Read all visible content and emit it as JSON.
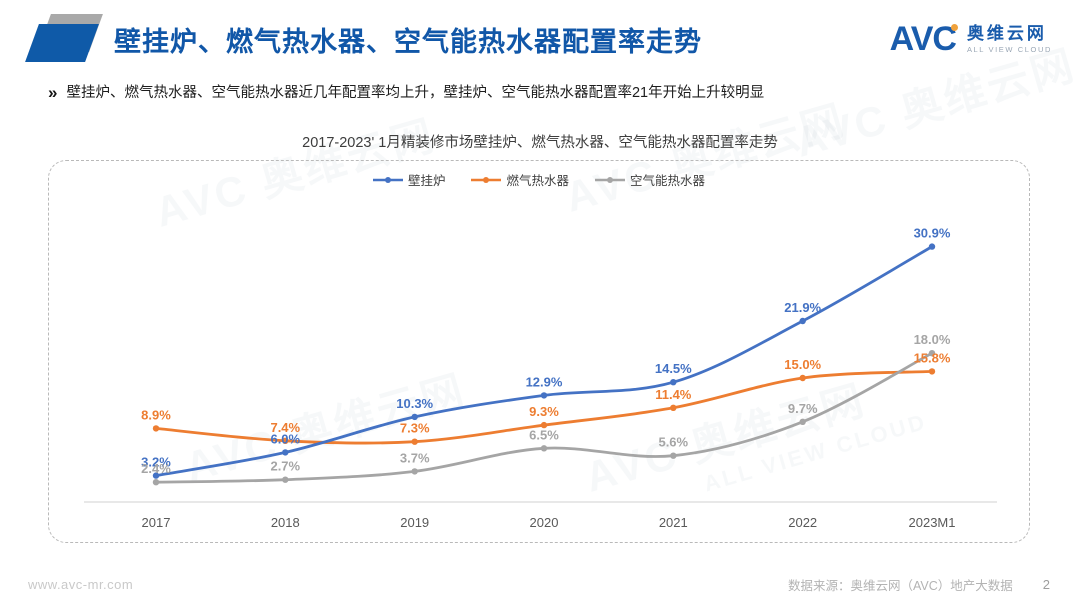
{
  "header": {
    "title": "壁挂炉、燃气热水器、空气能热水器配置率走势",
    "logo": {
      "avc": "AVC",
      "name": "奥维云网",
      "tagline": "ALL VIEW CLOUD"
    }
  },
  "summary": {
    "bullet_icon": "»",
    "text": "壁挂炉、燃气热水器、空气能热水器近几年配置率均上升，壁挂炉、空气能热水器配置率21年开始上升较明显"
  },
  "chart_data": {
    "type": "line",
    "title": "2017-2023' 1月精装修市场壁挂炉、燃气热水器、空气能热水器配置率走势",
    "categories": [
      "2017",
      "2018",
      "2019",
      "2020",
      "2021",
      "2022",
      "2023M1"
    ],
    "series": [
      {
        "name": "壁挂炉",
        "color": "#4472C4",
        "values": [
          3.2,
          6.0,
          10.3,
          12.9,
          14.5,
          21.9,
          30.9
        ]
      },
      {
        "name": "燃气热水器",
        "color": "#ED7D31",
        "values": [
          8.9,
          7.4,
          7.3,
          9.3,
          11.4,
          15.0,
          15.8
        ]
      },
      {
        "name": "空气能热水器",
        "color": "#A5A5A5",
        "values": [
          2.4,
          2.7,
          3.7,
          6.5,
          5.6,
          9.7,
          18.0
        ]
      }
    ],
    "unit": "%",
    "xlabel": "",
    "ylabel": "",
    "ylim": [
      0,
      35
    ],
    "grid": false,
    "legend_position": "top",
    "data_labels": true
  },
  "watermark": {
    "text": "AVC 奥维云网",
    "subtext": "ALL VIEW CLOUD"
  },
  "footer": {
    "website": "www.avc-mr.com",
    "source": "数据来源：奥维云网（AVC）地产大数据",
    "page": "2"
  },
  "colors": {
    "accent_blue": "#1157A8",
    "series_blue": "#4472C4",
    "series_orange": "#ED7D31",
    "series_gray": "#A5A5A5",
    "logo_orange": "#F0A23C",
    "axis_line": "#D9D9D9"
  }
}
